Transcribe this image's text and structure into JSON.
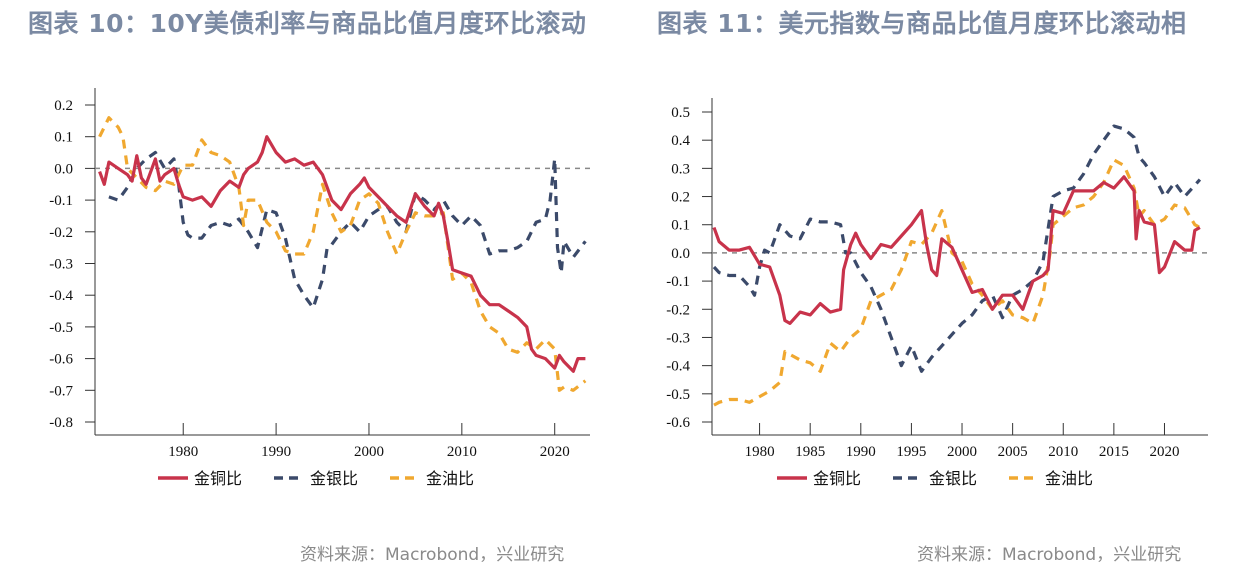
{
  "colors": {
    "copper": "#c8334b",
    "silver": "#3b4a6a",
    "oil": "#f0a830",
    "zero_line": "#888888",
    "title": "#7b8aa3"
  },
  "chart_data": [
    {
      "type": "line",
      "title": "图表 10：10Y美债利率与商品比值月度环比滚动",
      "source": "资料来源：Macrobond，兴业研究",
      "xlabel": "",
      "ylabel": "",
      "xlim": [
        1970.5,
        2023.8
      ],
      "ylim": [
        -0.8,
        0.2
      ],
      "xticks": [
        1980,
        1990,
        2000,
        2010,
        2020
      ],
      "yticks": [
        0.2,
        0.1,
        0.0,
        -0.1,
        -0.2,
        -0.3,
        -0.4,
        -0.5,
        -0.6,
        -0.7,
        -0.8
      ],
      "ytick_labels": [
        "0.2",
        "0.1",
        "0.0",
        "-0.1",
        "-0.2",
        "-0.3",
        "-0.4",
        "-0.5",
        "-0.6",
        "-0.7",
        "-0.8"
      ],
      "zero_line": true,
      "legend": "bottom",
      "series": [
        {
          "name": "金铜比",
          "style": "solid",
          "color_key": "copper",
          "x": [
            1971,
            1971.5,
            1972,
            1973,
            1974,
            1974.5,
            1975,
            1975.5,
            1976,
            1977,
            1977.5,
            1978,
            1979,
            1979.5,
            1980,
            1981,
            1982,
            1983,
            1984,
            1985,
            1986,
            1986.5,
            1987,
            1988,
            1988.5,
            1989,
            1990,
            1991,
            1992,
            1993,
            1994,
            1995,
            1996,
            1997,
            1998,
            1999,
            1999.5,
            2000,
            2001,
            2002,
            2003,
            2004,
            2005,
            2006,
            2007,
            2007.5,
            2008,
            2008.5,
            2009,
            2010,
            2011,
            2012,
            2013,
            2014,
            2015,
            2016,
            2017,
            2017.5,
            2018,
            2019,
            2020,
            2020.5,
            2021,
            2022,
            2022.5,
            2023.3
          ],
          "y": [
            -0.01,
            -0.05,
            0.02,
            0.0,
            -0.02,
            -0.04,
            0.04,
            -0.03,
            -0.05,
            0.03,
            -0.04,
            -0.02,
            0.0,
            -0.05,
            -0.09,
            -0.1,
            -0.09,
            -0.12,
            -0.07,
            -0.04,
            -0.06,
            -0.02,
            0.0,
            0.02,
            0.05,
            0.1,
            0.05,
            0.02,
            0.03,
            0.01,
            0.02,
            -0.02,
            -0.1,
            -0.13,
            -0.08,
            -0.05,
            -0.03,
            -0.06,
            -0.09,
            -0.12,
            -0.15,
            -0.17,
            -0.08,
            -0.12,
            -0.15,
            -0.11,
            -0.15,
            -0.23,
            -0.32,
            -0.33,
            -0.34,
            -0.4,
            -0.43,
            -0.43,
            -0.45,
            -0.47,
            -0.5,
            -0.57,
            -0.59,
            -0.6,
            -0.63,
            -0.59,
            -0.61,
            -0.64,
            -0.6,
            -0.6
          ]
        },
        {
          "name": "金银比",
          "style": "dashed",
          "color_key": "silver",
          "x": [
            1972,
            1973,
            1974,
            1975,
            1976,
            1977,
            1978,
            1979,
            1979.5,
            1980,
            1980.5,
            1981,
            1982,
            1983,
            1984,
            1985,
            1986,
            1987,
            1988,
            1989,
            1990,
            1991,
            1992,
            1993,
            1994,
            1995,
            1995.5,
            1996,
            1997,
            1998,
            1999,
            2000,
            2001,
            2002,
            2003,
            2004,
            2005,
            2006,
            2007,
            2008,
            2009,
            2010,
            2011,
            2012,
            2013,
            2014,
            2015,
            2016,
            2017,
            2018,
            2019,
            2019.5,
            2020,
            2020.3,
            2020.7,
            2021,
            2022,
            2023.3
          ],
          "y": [
            -0.09,
            -0.1,
            -0.06,
            0.0,
            0.03,
            0.05,
            0.0,
            0.03,
            -0.05,
            -0.17,
            -0.21,
            -0.22,
            -0.22,
            -0.18,
            -0.17,
            -0.18,
            -0.16,
            -0.2,
            -0.25,
            -0.13,
            -0.14,
            -0.22,
            -0.35,
            -0.4,
            -0.44,
            -0.35,
            -0.25,
            -0.24,
            -0.2,
            -0.17,
            -0.2,
            -0.15,
            -0.13,
            -0.12,
            -0.17,
            -0.2,
            -0.08,
            -0.1,
            -0.13,
            -0.1,
            -0.15,
            -0.18,
            -0.15,
            -0.18,
            -0.27,
            -0.26,
            -0.26,
            -0.25,
            -0.23,
            -0.17,
            -0.16,
            -0.1,
            0.03,
            -0.25,
            -0.33,
            -0.23,
            -0.28,
            -0.23
          ]
        },
        {
          "name": "金油比",
          "style": "dashed",
          "color_key": "oil",
          "x": [
            1971,
            1972,
            1973,
            1973.5,
            1974,
            1975,
            1976,
            1977,
            1978,
            1979,
            1980,
            1981,
            1982,
            1983,
            1984,
            1985,
            1986,
            1986.5,
            1987,
            1988,
            1989,
            1990,
            1991,
            1992,
            1993,
            1994,
            1995,
            1996,
            1997,
            1998,
            1999,
            2000,
            2001,
            2002,
            2003,
            2004,
            2005,
            2006,
            2007,
            2008,
            2009,
            2010,
            2011,
            2012,
            2013,
            2014,
            2015,
            2016,
            2017,
            2018,
            2019,
            2020,
            2020.5,
            2021,
            2022,
            2023.3
          ],
          "y": [
            0.1,
            0.16,
            0.13,
            0.1,
            0.0,
            -0.03,
            -0.06,
            -0.07,
            -0.04,
            -0.05,
            0.01,
            0.01,
            0.09,
            0.05,
            0.04,
            0.02,
            -0.06,
            -0.18,
            -0.1,
            -0.1,
            -0.17,
            -0.2,
            -0.26,
            -0.27,
            -0.27,
            -0.2,
            -0.05,
            -0.14,
            -0.2,
            -0.18,
            -0.1,
            -0.08,
            -0.11,
            -0.2,
            -0.27,
            -0.2,
            -0.14,
            -0.15,
            -0.15,
            -0.14,
            -0.35,
            -0.33,
            -0.36,
            -0.45,
            -0.5,
            -0.52,
            -0.57,
            -0.58,
            -0.55,
            -0.57,
            -0.54,
            -0.57,
            -0.7,
            -0.69,
            -0.7,
            -0.67
          ]
        }
      ]
    },
    {
      "type": "line",
      "title": "图表 11：美元指数与商品比值月度环比滚动相",
      "source": "资料来源：Macrobond，兴业研究",
      "xlabel": "",
      "ylabel": "",
      "xlim": [
        1975.3,
        2024.3
      ],
      "ylim": [
        -0.6,
        0.5
      ],
      "xticks": [
        1980,
        1985,
        1990,
        1995,
        2000,
        2005,
        2010,
        2015,
        2020
      ],
      "yticks": [
        0.5,
        0.4,
        0.3,
        0.2,
        0.1,
        0.0,
        -0.1,
        -0.2,
        -0.3,
        -0.4,
        -0.5,
        -0.6
      ],
      "ytick_labels": [
        "0.5",
        "0.4",
        "0.3",
        "0.2",
        "0.1",
        "0.0",
        "-0.1",
        "-0.2",
        "-0.3",
        "-0.4",
        "-0.5",
        "-0.6"
      ],
      "zero_line": true,
      "legend": "bottom",
      "series": [
        {
          "name": "金铜比",
          "style": "solid",
          "color_key": "copper",
          "x": [
            1975.5,
            1976,
            1977,
            1978,
            1979,
            1980,
            1981,
            1982,
            1982.5,
            1983,
            1984,
            1985,
            1986,
            1987,
            1988,
            1988.3,
            1989,
            1989.5,
            1990,
            1991,
            1992,
            1993,
            1994,
            1995,
            1996,
            1996.5,
            1997,
            1997.5,
            1998,
            1999,
            2000,
            2001,
            2002,
            2003,
            2004,
            2005,
            2006,
            2007,
            2008,
            2008.5,
            2009,
            2010,
            2011,
            2012,
            2013,
            2014,
            2015,
            2016,
            2017,
            2017.2,
            2017.5,
            2018,
            2019,
            2019.5,
            2020,
            2021,
            2022,
            2022.7,
            2023,
            2023.5
          ],
          "y": [
            0.09,
            0.04,
            0.01,
            0.01,
            0.02,
            -0.04,
            -0.05,
            -0.15,
            -0.24,
            -0.25,
            -0.21,
            -0.22,
            -0.18,
            -0.21,
            -0.2,
            -0.06,
            0.03,
            0.07,
            0.03,
            -0.02,
            0.03,
            0.02,
            0.06,
            0.1,
            0.15,
            0.03,
            -0.06,
            -0.08,
            0.05,
            0.02,
            -0.06,
            -0.14,
            -0.13,
            -0.2,
            -0.15,
            -0.15,
            -0.2,
            -0.1,
            -0.08,
            -0.06,
            0.15,
            0.14,
            0.22,
            0.22,
            0.22,
            0.25,
            0.23,
            0.27,
            0.22,
            0.05,
            0.15,
            0.11,
            0.1,
            -0.07,
            -0.05,
            0.04,
            0.01,
            0.01,
            0.08,
            0.09
          ]
        },
        {
          "name": "金银比",
          "style": "dashed",
          "color_key": "silver",
          "x": [
            1975.5,
            1976,
            1977,
            1978,
            1979,
            1979.5,
            1980,
            1980.5,
            1981,
            1982,
            1983,
            1984,
            1985,
            1986,
            1987,
            1988,
            1988.5,
            1989,
            1990,
            1991,
            1992,
            1993,
            1994,
            1995,
            1996,
            1997,
            1998,
            1999,
            2000,
            2001,
            2002,
            2003,
            2004,
            2005,
            2006,
            2007,
            2008,
            2009,
            2010,
            2011,
            2012,
            2013,
            2014,
            2015,
            2016,
            2017,
            2017.5,
            2018,
            2019,
            2020,
            2021,
            2022,
            2023.5
          ],
          "y": [
            -0.05,
            -0.07,
            -0.08,
            -0.08,
            -0.12,
            -0.15,
            -0.05,
            0.01,
            0.0,
            0.1,
            0.06,
            0.05,
            0.12,
            0.11,
            0.11,
            0.1,
            0.0,
            0.0,
            -0.07,
            -0.12,
            -0.2,
            -0.3,
            -0.4,
            -0.33,
            -0.42,
            -0.37,
            -0.33,
            -0.29,
            -0.25,
            -0.22,
            -0.17,
            -0.15,
            -0.23,
            -0.15,
            -0.13,
            -0.1,
            -0.03,
            0.2,
            0.22,
            0.23,
            0.28,
            0.35,
            0.4,
            0.45,
            0.44,
            0.41,
            0.34,
            0.32,
            0.27,
            0.2,
            0.25,
            0.2,
            0.26
          ]
        },
        {
          "name": "金油比",
          "style": "dashed",
          "color_key": "oil",
          "x": [
            1975.5,
            1976,
            1977,
            1978,
            1979,
            1980,
            1981,
            1982,
            1982.5,
            1983,
            1984,
            1985,
            1986,
            1987,
            1988,
            1989,
            1990,
            1991,
            1992,
            1993,
            1994,
            1995,
            1996,
            1997,
            1998,
            1999,
            2000,
            2001,
            2002,
            2003,
            2004,
            2005,
            2006,
            2007,
            2008,
            2008.7,
            2009,
            2010,
            2011,
            2012,
            2013,
            2014,
            2015,
            2016,
            2017,
            2017.5,
            2018,
            2019,
            2020,
            2021,
            2022,
            2023,
            2023.5
          ],
          "y": [
            -0.54,
            -0.53,
            -0.52,
            -0.52,
            -0.53,
            -0.51,
            -0.49,
            -0.46,
            -0.35,
            -0.36,
            -0.38,
            -0.39,
            -0.42,
            -0.32,
            -0.35,
            -0.3,
            -0.27,
            -0.17,
            -0.15,
            -0.13,
            -0.06,
            0.04,
            0.03,
            0.07,
            0.15,
            0.0,
            -0.03,
            -0.11,
            -0.15,
            -0.2,
            -0.17,
            -0.22,
            -0.23,
            -0.25,
            -0.15,
            0.0,
            0.1,
            0.13,
            0.16,
            0.17,
            0.2,
            0.25,
            0.33,
            0.31,
            0.23,
            0.13,
            0.15,
            0.1,
            0.12,
            0.17,
            0.16,
            0.1,
            0.09
          ]
        }
      ]
    }
  ]
}
